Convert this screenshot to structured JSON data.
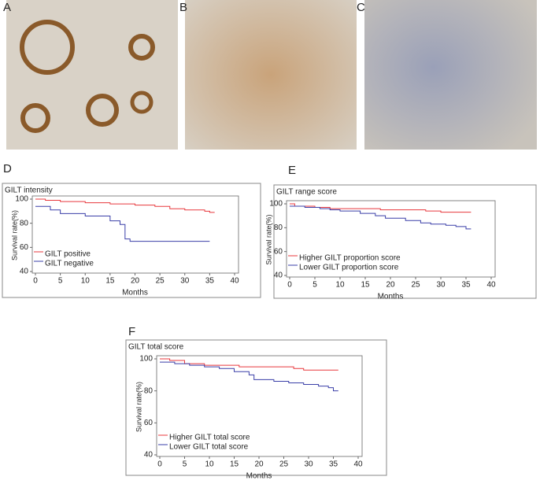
{
  "panel_labels": [
    "A",
    "B",
    "C",
    "D",
    "E",
    "F"
  ],
  "chart_data": [
    {
      "type": "step",
      "title": "GILT intensity",
      "xlabel": "Months",
      "ylabel": "Survival rate(%)",
      "xlim": [
        0,
        40
      ],
      "xticks": [
        0,
        5,
        10,
        15,
        20,
        25,
        30,
        35,
        40
      ],
      "ylim": [
        40,
        100
      ],
      "yticks": [
        40,
        60,
        80,
        100
      ],
      "legend": "lower left",
      "series": [
        {
          "name": "GILT positive",
          "color": "#e8383d",
          "x": [
            0,
            2,
            5,
            10,
            15,
            20,
            24,
            27,
            30,
            34,
            35,
            36
          ],
          "values": [
            100,
            99,
            98,
            97,
            96,
            95,
            94,
            92,
            91,
            90,
            89,
            89
          ]
        },
        {
          "name": "GILT negative",
          "color": "#3a3fa8",
          "x": [
            0,
            3,
            5,
            10,
            15,
            17,
            18,
            19,
            35
          ],
          "values": [
            94,
            91,
            88,
            86,
            82,
            79,
            67,
            65,
            65
          ]
        }
      ]
    },
    {
      "type": "step",
      "title": "GILT range score",
      "xlabel": "Months",
      "ylabel": "Survival rate(%)",
      "xlim": [
        0,
        40
      ],
      "xticks": [
        0,
        5,
        10,
        15,
        20,
        25,
        30,
        35,
        40
      ],
      "ylim": [
        40,
        100
      ],
      "yticks": [
        40,
        60,
        80,
        100
      ],
      "legend": "lower left",
      "series": [
        {
          "name": "Higher GILT proportion score",
          "color": "#e8383d",
          "x": [
            0,
            1,
            5,
            8,
            18,
            27,
            30,
            36
          ],
          "values": [
            100,
            98,
            97,
            96,
            95,
            94,
            93,
            93
          ]
        },
        {
          "name": "Lower GILT proportion score",
          "color": "#3a3fa8",
          "x": [
            0,
            3,
            6,
            8,
            10,
            14,
            17,
            19,
            23,
            26,
            28,
            31,
            33,
            35,
            36
          ],
          "values": [
            98,
            97,
            96,
            95,
            94,
            92,
            90,
            88,
            86,
            84,
            83,
            82,
            81,
            79,
            79
          ]
        }
      ]
    },
    {
      "type": "step",
      "title": "GILT total score",
      "xlabel": "Months",
      "ylabel": "Survival rate(%)",
      "xlim": [
        0,
        40
      ],
      "xticks": [
        0,
        5,
        10,
        15,
        20,
        25,
        30,
        35,
        40
      ],
      "ylim": [
        40,
        100
      ],
      "yticks": [
        40,
        60,
        80,
        100
      ],
      "legend": "lower left",
      "series": [
        {
          "name": "Higher GILT total score",
          "color": "#e8383d",
          "x": [
            0,
            2,
            5,
            9,
            16,
            27,
            29,
            36
          ],
          "values": [
            100,
            99,
            97,
            96,
            95,
            94,
            93,
            93
          ]
        },
        {
          "name": "Lower GILT total score",
          "color": "#3a3fa8",
          "x": [
            0,
            3,
            6,
            9,
            12,
            15,
            18,
            19,
            23,
            26,
            29,
            32,
            34,
            35,
            36
          ],
          "values": [
            98,
            97,
            96,
            95,
            94,
            92,
            90,
            87,
            86,
            85,
            84,
            83,
            82,
            80,
            80
          ]
        }
      ]
    }
  ]
}
